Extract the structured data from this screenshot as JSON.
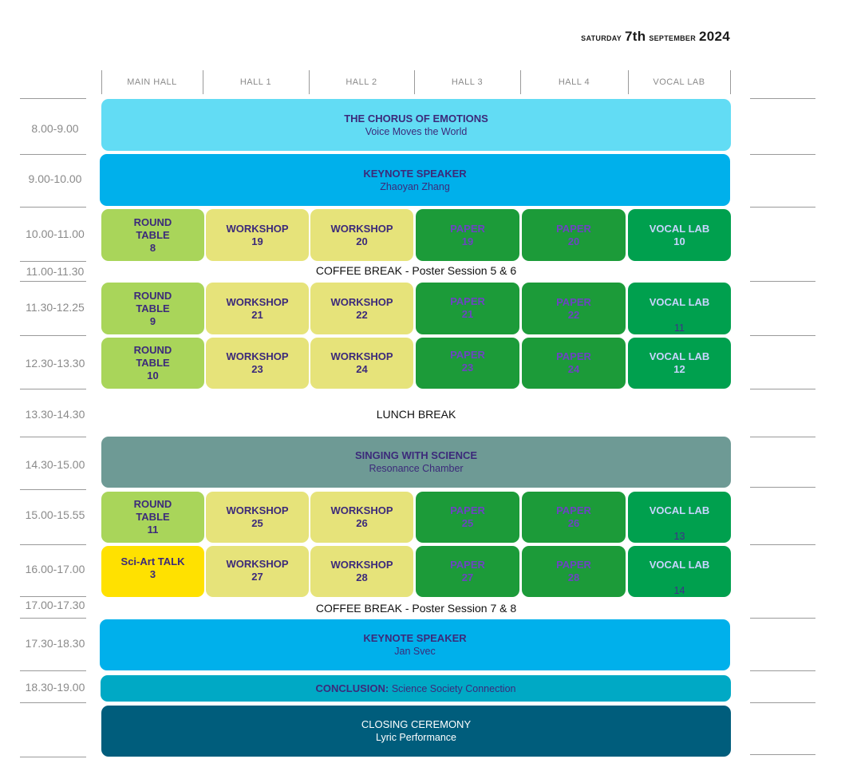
{
  "header": {
    "day": "saturday",
    "date_num": "7th",
    "month": "september",
    "year": "2024"
  },
  "columns": [
    "MAIN HALL",
    "HALL 1",
    "HALL 2",
    "HALL 3",
    "HALL 4",
    "VOCAL LAB"
  ],
  "times": [
    "8.00-9.00",
    "9.00-10.00",
    "10.00-11.00",
    "11.00-11.30",
    "11.30-12.25",
    "12.30-13.30",
    "13.30-14.30",
    "14.30-15.00",
    "15.00-15.55",
    "16.00-17.00",
    "17.00-17.30",
    "17.30-18.30",
    "18.30-19.00"
  ],
  "plenary": {
    "chorus": {
      "title": "THE CHORUS OF EMOTIONS",
      "sub": "Voice Moves the World"
    },
    "keynote1": {
      "title": "KEYNOTE SPEAKER",
      "sub": "Zhaoyan Zhang"
    },
    "singing": {
      "title": "SINGING WITH SCIENCE",
      "sub": "Resonance Chamber"
    },
    "keynote2": {
      "title": "KEYNOTE SPEAKER",
      "sub": "Jan Svec"
    },
    "conclusion": {
      "label": "CONCLUSION:",
      "text": "Science Society Connection"
    },
    "closing": {
      "title": "CLOSING CEREMONY",
      "sub": "Lyric Performance"
    }
  },
  "breaks": {
    "coffee1": "COFFEE BREAK - Poster Session 5 & 6",
    "lunch": "LUNCH BREAK",
    "coffee2": "COFFEE BREAK - Poster Session 7 & 8"
  },
  "rows": [
    {
      "rt": {
        "a": "ROUND",
        "b": "TABLE",
        "n": "8"
      },
      "ws1": {
        "t": "WORKSHOP",
        "n": "19"
      },
      "ws2": {
        "t": "WORKSHOP",
        "n": "20"
      },
      "p1": {
        "t": "PAPER",
        "n": "19"
      },
      "p2": {
        "t": "PAPER",
        "n": "20"
      },
      "vl": {
        "t": "VOCAL LAB",
        "n": "10"
      }
    },
    {
      "rt": {
        "a": "ROUND",
        "b": "TABLE",
        "n": "9"
      },
      "ws1": {
        "t": "WORKSHOP",
        "n": "21"
      },
      "ws2": {
        "t": "WORKSHOP",
        "n": "22"
      },
      "p1": {
        "t": "PAPER",
        "n": "21"
      },
      "p2": {
        "t": "PAPER",
        "n": "22"
      },
      "vl": {
        "t": "VOCAL LAB",
        "n": "11"
      }
    },
    {
      "rt": {
        "a": "ROUND",
        "b": "TABLE",
        "n": "10"
      },
      "ws1": {
        "t": "WORKSHOP",
        "n": "23"
      },
      "ws2": {
        "t": "WORKSHOP",
        "n": "24"
      },
      "p1": {
        "t": "PAPER",
        "n": "23"
      },
      "p2": {
        "t": "PAPER",
        "n": "24"
      },
      "vl": {
        "t": "VOCAL LAB",
        "n": "12"
      }
    },
    {
      "rt": {
        "a": "ROUND",
        "b": "TABLE",
        "n": "11"
      },
      "ws1": {
        "t": "WORKSHOP",
        "n": "25"
      },
      "ws2": {
        "t": "WORKSHOP",
        "n": "26"
      },
      "p1": {
        "t": "PAPER",
        "n": "25"
      },
      "p2": {
        "t": "PAPER",
        "n": "26"
      },
      "vl": {
        "t": "VOCAL LAB",
        "n": "13"
      }
    },
    {
      "rt": {
        "a": "Sci-Art TALK",
        "n": "3"
      },
      "ws1": {
        "t": "WORKSHOP",
        "n": "27"
      },
      "ws2": {
        "t": "WORKSHOP",
        "n": "28"
      },
      "p1": {
        "t": "PAPER",
        "n": "27"
      },
      "p2": {
        "t": "PAPER",
        "n": "28"
      },
      "vl": {
        "t": "VOCAL LAB",
        "n": "14"
      }
    }
  ],
  "colors": {
    "chorus": "#62dcf4",
    "keynote": "#00b0eb",
    "round_table": "#a9d55a",
    "workshop": "#e6e37a",
    "paper": "#1c9b39",
    "vocal_lab": "#00a04e",
    "singing": "#6e9a95",
    "sci_art": "#ffe100",
    "conclusion": "#00a9c5",
    "closing": "#005d7c"
  }
}
